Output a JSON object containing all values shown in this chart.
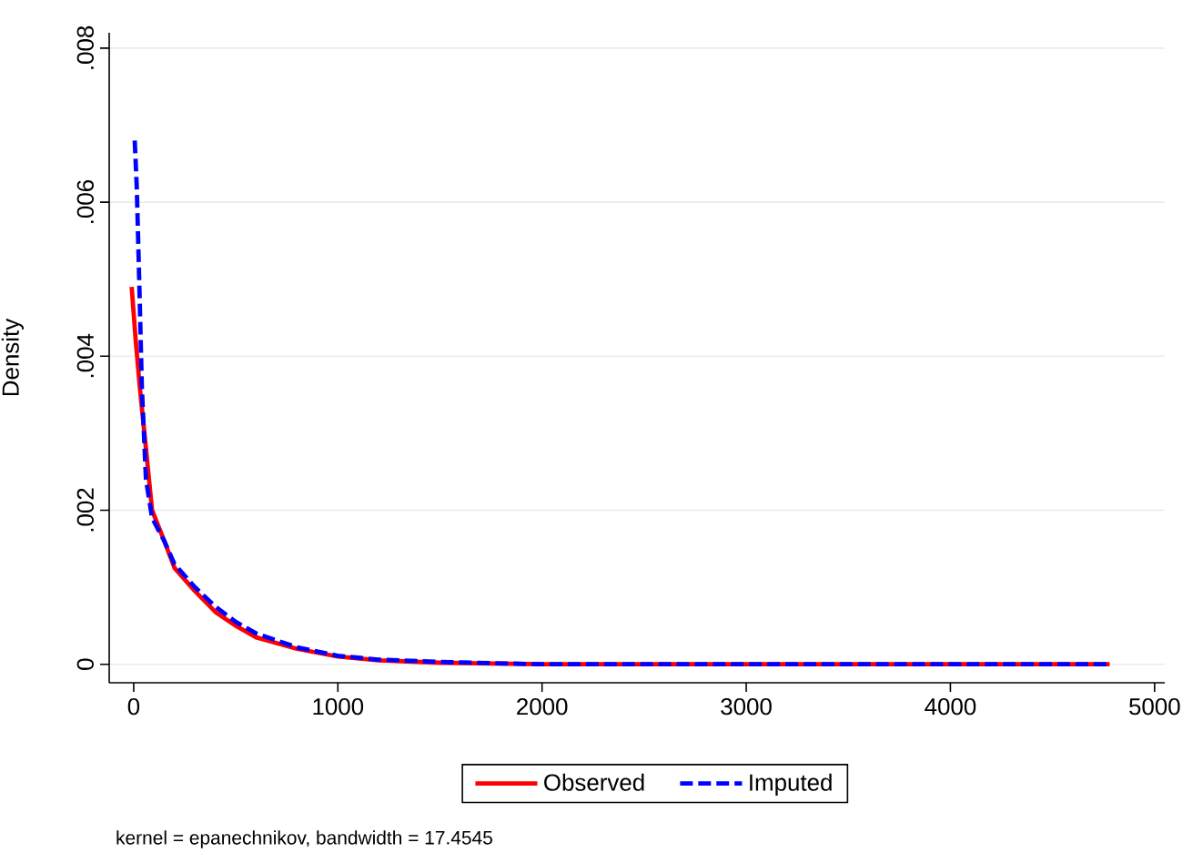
{
  "chart_data": {
    "type": "line",
    "ylabel": "Density",
    "annotations": [
      "kernel = epanechnikov, bandwidth = 17.4545"
    ],
    "xlim": [
      -120,
      5050
    ],
    "ylim": [
      -0.00024,
      0.0082
    ],
    "xticks": [
      0,
      1000,
      2000,
      3000,
      4000,
      5000
    ],
    "yticks": [
      0,
      {
        "value": 0.002,
        "label": ".002"
      },
      {
        "value": 0.004,
        "label": ".004"
      },
      {
        "value": 0.006,
        "label": ".006"
      },
      {
        "value": 0.008,
        "label": ".008"
      }
    ],
    "grid": "y",
    "legend": "bottom",
    "marker": "none",
    "series": [
      {
        "name": "Observed",
        "color": "#ff0000",
        "line_style": "solid",
        "x": [
          -10,
          10,
          30,
          60,
          90,
          150,
          200,
          300,
          400,
          500,
          600,
          800,
          1000,
          1200,
          1500,
          2000,
          3000,
          4000,
          4780
        ],
        "values": [
          0.0049,
          0.0042,
          0.0036,
          0.0028,
          0.002,
          0.0016,
          0.00125,
          0.00095,
          0.00068,
          0.0005,
          0.00035,
          0.0002,
          0.0001,
          5e-05,
          2e-05,
          0,
          0,
          0,
          0
        ]
      },
      {
        "name": "Imputed",
        "color": "#0000ff",
        "line_style": "dashed",
        "x": [
          5,
          15,
          25,
          40,
          60,
          90,
          150,
          200,
          300,
          400,
          500,
          600,
          800,
          1000,
          1200,
          1500,
          2000,
          3000,
          4000,
          4780
        ],
        "values": [
          0.0068,
          0.0062,
          0.0052,
          0.0036,
          0.0024,
          0.0019,
          0.0016,
          0.0013,
          0.001,
          0.00075,
          0.00055,
          0.0004,
          0.00022,
          0.00011,
          6e-05,
          3e-05,
          0,
          0,
          0,
          0
        ]
      }
    ]
  }
}
